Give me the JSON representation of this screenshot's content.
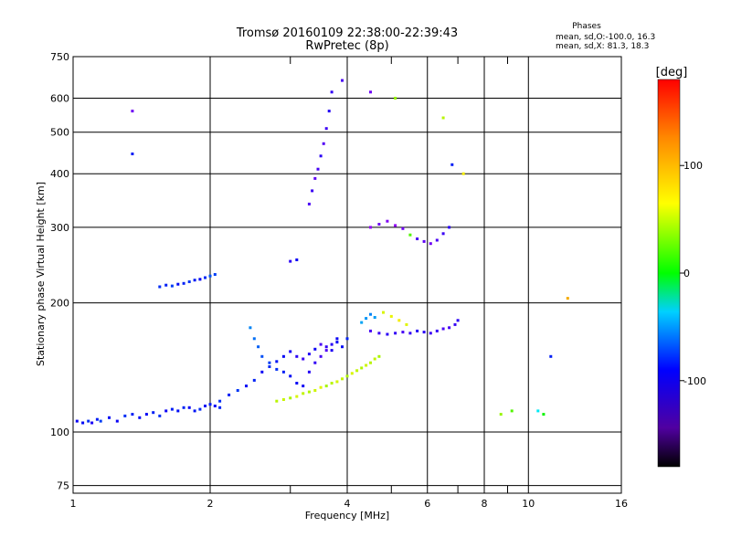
{
  "chart_data": {
    "type": "scatter",
    "title": "Tromsø 20160109 22:38:00-22:39:43",
    "subtitle": "RwPretec (8p)",
    "xlabel": "Frequency [MHz]",
    "ylabel": "Stationary phase Virtual Height [km]",
    "x_scale": "log",
    "y_scale": "log",
    "xlim": [
      1,
      16
    ],
    "ylim": [
      72,
      750
    ],
    "x_ticks": [
      1,
      2,
      4,
      6,
      8,
      10,
      16
    ],
    "x_tick_labels": [
      "1",
      "2",
      "4",
      "6",
      "8",
      "10",
      "16"
    ],
    "x_minor_ticks": [
      3,
      5,
      7,
      9
    ],
    "y_ticks": [
      75,
      100,
      200,
      300,
      400,
      500,
      600,
      750
    ],
    "y_tick_labels": [
      "75",
      "100",
      "200",
      "300",
      "400",
      "500",
      "600",
      "750"
    ],
    "grid": true,
    "stats": {
      "heading": "Phases",
      "line_o": "mean, sd,O:-100.0, 16.3",
      "line_x": "mean, sd,X:  81.3, 18.3"
    },
    "colorbar": {
      "label": "[deg]",
      "range": [
        -180,
        180
      ],
      "ticks": [
        100,
        0,
        -100
      ],
      "tick_labels": [
        "100",
        "0",
        "-100"
      ]
    },
    "series": [
      {
        "x": [
          1.02,
          1.05,
          1.08,
          1.1,
          1.13,
          1.15,
          1.2,
          1.25,
          1.3,
          1.35,
          1.4,
          1.45,
          1.5,
          1.55,
          1.6,
          1.65,
          1.7,
          1.75,
          1.8,
          1.85,
          1.9,
          1.95,
          2.0,
          2.05,
          2.1
        ],
        "y": [
          106,
          105,
          106,
          105,
          107,
          106,
          108,
          106,
          109,
          110,
          108,
          110,
          111,
          109,
          112,
          113,
          112,
          114,
          114,
          112,
          113,
          115,
          116,
          115,
          114
        ],
        "phase": [
          -110,
          -105,
          -95,
          -115,
          -100,
          -90,
          -105,
          -110,
          -95,
          -100,
          -105,
          -108,
          -100,
          -95,
          -112,
          -100,
          -104,
          -98,
          -110,
          -102,
          -96,
          -104,
          -100,
          -108,
          -97
        ]
      },
      {
        "x": [
          2.1,
          2.2,
          2.3,
          2.4,
          2.5,
          2.6,
          2.7,
          2.8,
          2.9,
          3.0,
          3.1,
          3.2,
          3.3,
          3.4,
          3.5,
          3.6,
          3.7,
          3.8,
          3.9,
          4.0
        ],
        "y": [
          118,
          122,
          125,
          128,
          132,
          138,
          142,
          146,
          150,
          154,
          150,
          148,
          152,
          156,
          160,
          158,
          155,
          162,
          158,
          165
        ],
        "phase": [
          -95,
          -100,
          -92,
          -105,
          -98,
          -110,
          -96,
          -102,
          -108,
          -115,
          -120,
          -125,
          -118,
          -112,
          -130,
          -122,
          -116,
          -110,
          -104,
          -98
        ]
      },
      {
        "x": [
          2.45,
          2.5,
          2.55,
          2.6,
          2.7,
          2.8,
          2.9,
          3.0,
          3.1,
          3.2,
          3.3,
          3.4,
          3.5,
          3.6,
          3.7,
          3.8
        ],
        "y": [
          175,
          165,
          158,
          150,
          145,
          140,
          138,
          135,
          130,
          128,
          138,
          145,
          150,
          155,
          160,
          165
        ],
        "phase": [
          -70,
          -75,
          -80,
          -85,
          -90,
          -95,
          -100,
          -105,
          -108,
          -112,
          -118,
          -122,
          -128,
          -132,
          -120,
          -110
        ]
      },
      {
        "x": [
          2.8,
          2.9,
          3.0,
          3.1,
          3.2,
          3.3,
          3.4,
          3.5,
          3.6,
          3.7,
          3.8,
          3.9,
          4.0,
          4.1,
          4.2,
          4.3,
          4.4,
          4.5,
          4.6,
          4.7
        ],
        "y": [
          118,
          119,
          120,
          121,
          123,
          124,
          125,
          127,
          128,
          130,
          131,
          133,
          135,
          137,
          139,
          141,
          143,
          145,
          148,
          150
        ],
        "phase": [
          90,
          95,
          85,
          100,
          92,
          88,
          96,
          102,
          84,
          90,
          98,
          94,
          86,
          100,
          92,
          88,
          96,
          90,
          94,
          85
        ]
      },
      {
        "x": [
          4.5,
          4.7,
          4.9,
          5.1,
          5.3,
          5.5,
          5.7,
          5.9,
          6.1,
          6.3,
          6.5,
          6.7,
          6.9,
          7.0
        ],
        "y": [
          172,
          170,
          169,
          170,
          171,
          170,
          172,
          171,
          170,
          172,
          174,
          175,
          178,
          182
        ],
        "phase": [
          -130,
          -125,
          -120,
          -122,
          -128,
          -124,
          -118,
          -120,
          -126,
          -122,
          -130,
          -128,
          -124,
          -120
        ]
      },
      {
        "x": [
          4.3,
          4.4,
          4.5,
          4.6,
          4.8,
          5.0,
          5.2,
          5.4
        ],
        "y": [
          180,
          184,
          188,
          185,
          190,
          186,
          182,
          178
        ],
        "phase": [
          -60,
          -65,
          -70,
          -62,
          100,
          105,
          110,
          102
        ]
      },
      {
        "x": [
          1.55,
          1.6,
          1.65,
          1.7,
          1.75,
          1.8,
          1.85,
          1.9,
          1.95,
          2.0,
          2.05
        ],
        "y": [
          218,
          220,
          219,
          221,
          222,
          224,
          226,
          227,
          229,
          231,
          233
        ],
        "phase": [
          -95,
          -100,
          -90,
          -105,
          -98,
          -92,
          -100,
          -108,
          -96,
          -84,
          -90
        ]
      },
      {
        "x": [
          3.3,
          3.35,
          3.4,
          3.45,
          3.5,
          3.55,
          3.6,
          3.65,
          3.7
        ],
        "y": [
          340,
          365,
          390,
          410,
          440,
          470,
          510,
          560,
          620
        ],
        "phase": [
          -130,
          -125,
          -135,
          -128,
          -120,
          -132,
          -126,
          -118,
          -122
        ]
      },
      {
        "x": [
          4.5,
          4.7,
          4.9,
          5.1,
          5.3,
          5.5,
          5.7,
          5.9,
          6.1,
          6.3,
          6.5,
          6.7
        ],
        "y": [
          300,
          305,
          310,
          303,
          298,
          288,
          282,
          278,
          275,
          280,
          290,
          300
        ],
        "phase": [
          -150,
          -140,
          -145,
          -150,
          -140,
          60,
          -130,
          -135,
          -140,
          -130,
          -125,
          -120
        ]
      },
      {
        "x": [
          1.35,
          1.35,
          3.0,
          3.1,
          3.9,
          4.5,
          5.1,
          8.7,
          9.2,
          10.5,
          10.8,
          11.2,
          12.2,
          6.5,
          6.8,
          7.2
        ],
        "y": [
          560,
          445,
          250,
          252,
          660,
          620,
          600,
          110,
          112,
          112,
          110,
          150,
          205,
          540,
          420,
          400
        ],
        "phase": [
          -140,
          -100,
          -120,
          -110,
          -130,
          -140,
          80,
          80,
          60,
          -40,
          40,
          -100,
          130,
          90,
          -100,
          110
        ]
      }
    ]
  }
}
